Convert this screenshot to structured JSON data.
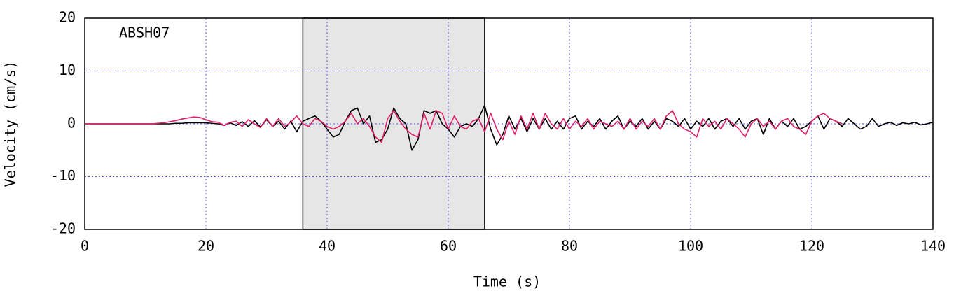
{
  "chart_data": {
    "type": "line",
    "annotation": "ABSH07",
    "xlabel": "Time (s)",
    "ylabel": "Velocity (cm/s)",
    "xlim": [
      0,
      140
    ],
    "xticks": [
      0,
      20,
      40,
      60,
      80,
      100,
      120,
      140
    ],
    "ylim": [
      -20,
      20
    ],
    "yticks": [
      -20,
      -10,
      0,
      10,
      20
    ],
    "grid": true,
    "span": {
      "x": [
        36,
        66
      ],
      "color": "#e6e6e6"
    },
    "x": [
      0,
      1,
      2,
      3,
      4,
      5,
      6,
      7,
      8,
      9,
      10,
      11,
      12,
      13,
      14,
      15,
      16,
      17,
      18,
      19,
      20,
      21,
      22,
      23,
      24,
      25,
      26,
      27,
      28,
      29,
      30,
      31,
      32,
      33,
      34,
      35,
      36,
      37,
      38,
      39,
      40,
      41,
      42,
      43,
      44,
      45,
      46,
      47,
      48,
      49,
      50,
      51,
      52,
      53,
      54,
      55,
      56,
      57,
      58,
      59,
      60,
      61,
      62,
      63,
      64,
      65,
      66,
      67,
      68,
      69,
      70,
      71,
      72,
      73,
      74,
      75,
      76,
      77,
      78,
      79,
      80,
      81,
      82,
      83,
      84,
      85,
      86,
      87,
      88,
      89,
      90,
      91,
      92,
      93,
      94,
      95,
      96,
      97,
      98,
      99,
      100,
      101,
      102,
      103,
      104,
      105,
      106,
      107,
      108,
      109,
      110,
      111,
      112,
      113,
      114,
      115,
      116,
      117,
      118,
      119,
      120,
      121,
      122,
      123,
      124,
      125,
      126,
      127,
      128,
      129,
      130,
      131,
      132,
      133,
      134,
      135,
      136,
      137,
      138,
      139,
      140
    ],
    "series": [
      {
        "color": "#000000",
        "values": [
          0,
          0,
          0,
          0,
          0,
          0,
          0,
          0,
          0,
          0,
          0,
          0,
          0,
          0,
          0,
          0.1,
          0.1,
          0.2,
          0.2,
          0.2,
          0.2,
          0.1,
          0,
          -0.3,
          0.2,
          -0.3,
          0.4,
          -0.5,
          0.6,
          -0.6,
          0.8,
          -0.5,
          0.5,
          -1,
          0.5,
          -1.5,
          0.5,
          1,
          1.5,
          0.5,
          -1,
          -2.5,
          -2,
          0.5,
          2.5,
          3,
          0,
          1.5,
          -3.5,
          -3,
          -1,
          3,
          1,
          0,
          -5,
          -3,
          2.5,
          2,
          2.5,
          0,
          -1,
          -2.5,
          -0.5,
          0,
          -0.5,
          1,
          3.5,
          -1,
          -4,
          -2,
          1.5,
          -1,
          1,
          -1.5,
          1,
          -1,
          1,
          -1,
          0.5,
          -1,
          1,
          1.5,
          -1,
          0.5,
          -0.5,
          1,
          -1,
          0.5,
          1.5,
          -1,
          0.5,
          -0.5,
          1,
          -1,
          0.5,
          -1,
          1,
          0.5,
          -0.5,
          1,
          -1,
          0.5,
          -0.5,
          1,
          -1,
          0.5,
          1,
          -0.5,
          1,
          -1,
          0.5,
          1,
          -2,
          1,
          -1,
          0.5,
          -0.5,
          1,
          -1,
          -0.5,
          0.5,
          1.5,
          -1,
          1,
          0.5,
          -0.5,
          1,
          0,
          -1,
          -0.5,
          1,
          -0.5,
          0,
          0.3,
          -0.3,
          0.2,
          0,
          0.3,
          -0.2,
          0,
          0.3
        ]
      },
      {
        "color": "#e0206a",
        "values": [
          0,
          0,
          0,
          0,
          0,
          0,
          0,
          0,
          0,
          0,
          0,
          0,
          0.1,
          0.2,
          0.4,
          0.6,
          0.9,
          1.1,
          1.3,
          1.2,
          0.8,
          0.4,
          0.3,
          -0.3,
          0.3,
          0.5,
          -0.5,
          0.8,
          0,
          -0.7,
          1,
          -0.5,
          1,
          -0.5,
          0.3,
          1.5,
          0,
          -0.5,
          1,
          0.5,
          -0.5,
          -1,
          -0.5,
          0.5,
          2,
          0,
          1,
          -0.5,
          -2.5,
          -3.5,
          1,
          2.5,
          0.5,
          -1,
          -2,
          -2.5,
          2,
          -1,
          2.5,
          2,
          -1,
          1.5,
          -0.5,
          -1,
          0.5,
          1,
          -1.5,
          2,
          -1,
          -3,
          0.5,
          -2,
          1.5,
          -1,
          2,
          -1,
          2,
          0,
          -1,
          1,
          -1,
          0.5,
          -0.5,
          1,
          -1,
          0.5,
          0,
          -0.5,
          0.5,
          -1,
          1,
          -1,
          0.5,
          -0.5,
          1,
          -1,
          1.5,
          2.5,
          0,
          -1,
          -1.5,
          -2.5,
          1,
          -0.5,
          0.5,
          -1,
          1,
          0,
          -1,
          -2.5,
          0,
          1,
          -0.5,
          0.5,
          -1,
          0.5,
          1,
          -0.5,
          -1,
          -2,
          0.5,
          1.5,
          2,
          1,
          0.5,
          0,
          null,
          null,
          null,
          null,
          null,
          null,
          null,
          null,
          null,
          null,
          null,
          null,
          null,
          null,
          null
        ]
      }
    ]
  }
}
